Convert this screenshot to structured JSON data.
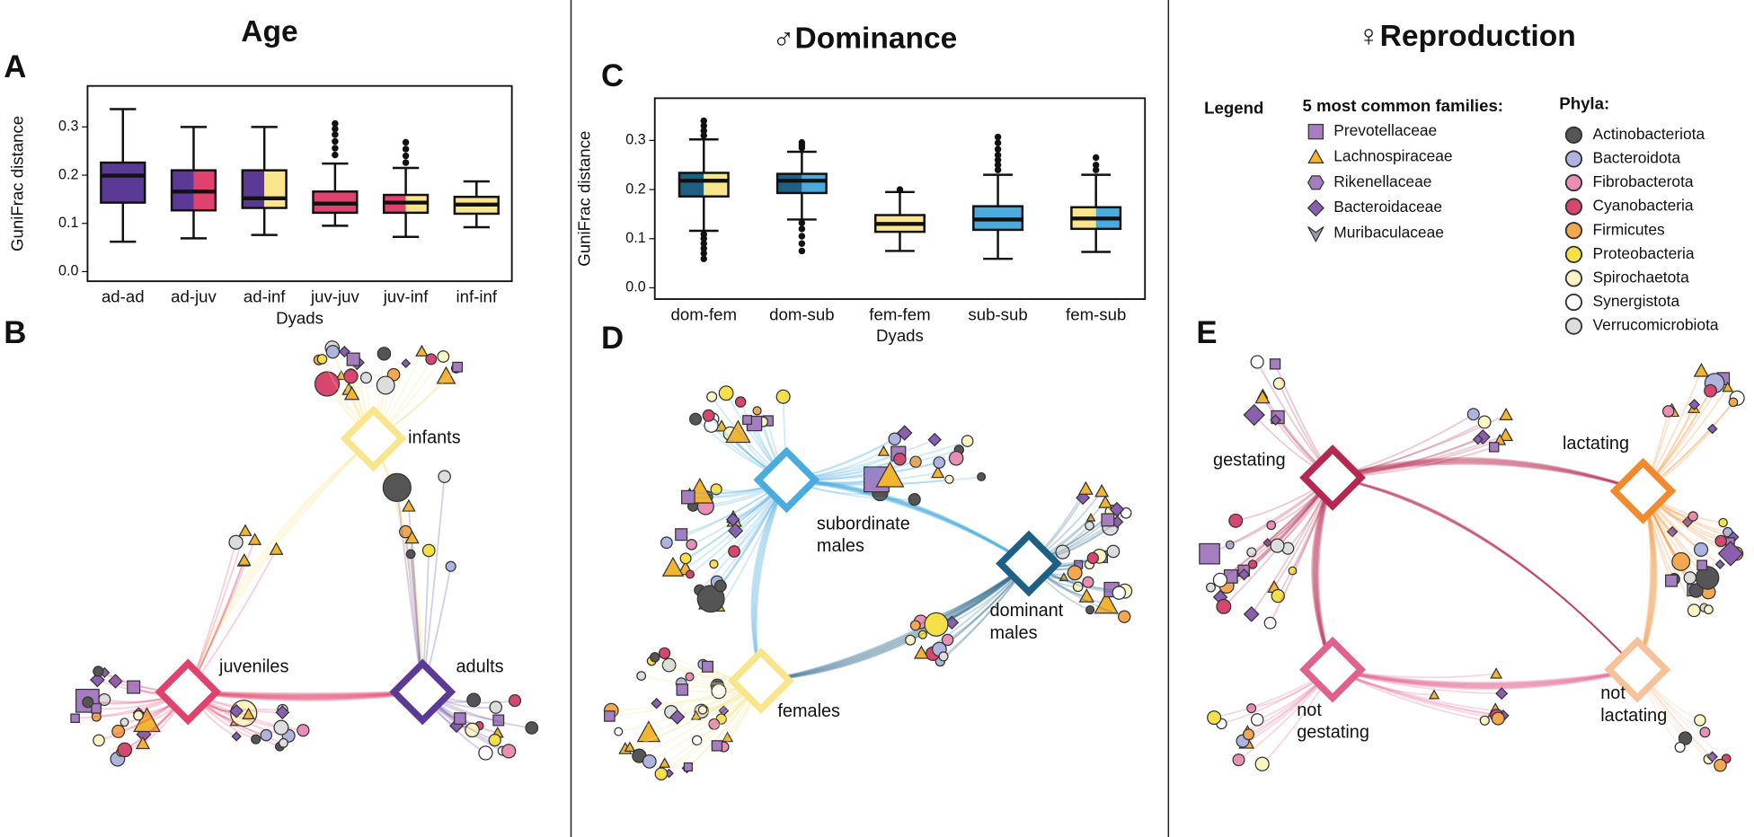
{
  "columns": [
    "Age",
    "♂Dominance",
    "♀Reproduction"
  ],
  "panels": [
    "A",
    "B",
    "C",
    "D",
    "E"
  ],
  "chart_data": [
    {
      "type": "box",
      "x_label": "Dyads",
      "y_label": "GuniFrac distance",
      "categories": [
        "ad-ad",
        "ad-juv",
        "ad-inf",
        "juv-juv",
        "juv-inf",
        "inf-inf"
      ],
      "whisker_low": [
        0.062,
        0.069,
        0.076,
        0.095,
        0.072,
        0.092
      ],
      "q1": [
        0.143,
        0.127,
        0.132,
        0.122,
        0.122,
        0.12
      ],
      "median": [
        0.199,
        0.166,
        0.152,
        0.141,
        0.143,
        0.139
      ],
      "q3": [
        0.226,
        0.21,
        0.21,
        0.166,
        0.159,
        0.155
      ],
      "whisker_high": [
        0.337,
        0.3,
        0.3,
        0.224,
        0.215,
        0.187
      ],
      "outliers": [
        [],
        [],
        [],
        [
          0.307,
          0.296,
          0.284,
          0.27,
          0.256,
          0.242
        ],
        [
          0.268,
          0.254,
          0.24,
          0.226
        ],
        []
      ],
      "colors": [
        [
          "#5b3a96"
        ],
        [
          "#5b3a96",
          "#e0426e"
        ],
        [
          "#5b3a96",
          "#f8e58c"
        ],
        [
          "#e0426e"
        ],
        [
          "#e0426e",
          "#f8e58c"
        ],
        [
          "#f8e58c"
        ]
      ],
      "ylim": [
        -0.02,
        0.385
      ],
      "yticks": [
        {
          "value": 0,
          "label": "0.0"
        },
        0.1,
        0.2,
        0.3
      ]
    },
    {
      "type": "box",
      "x_label": "Dyads",
      "y_label": "GuniFrac distance",
      "categories": [
        "dom-fem",
        "dom-sub",
        "fem-fem",
        "sub-sub",
        "fem-sub"
      ],
      "whisker_low": [
        0.116,
        0.139,
        0.075,
        0.059,
        0.073
      ],
      "q1": [
        0.186,
        0.193,
        0.114,
        0.118,
        0.12
      ],
      "median": [
        0.218,
        0.218,
        0.13,
        0.139,
        0.141
      ],
      "q3": [
        0.234,
        0.232,
        0.148,
        0.166,
        0.164
      ],
      "whisker_high": [
        0.302,
        0.277,
        0.195,
        0.23,
        0.23
      ],
      "outliers": [
        [
          0.34,
          0.33,
          0.32,
          0.31,
          0.109,
          0.1,
          0.09,
          0.08,
          0.07,
          0.059
        ],
        [
          0.296,
          0.29,
          0.285,
          0.132,
          0.12,
          0.105,
          0.09,
          0.075
        ],
        [
          0.2
        ],
        [
          0.307,
          0.295,
          0.282,
          0.27,
          0.26,
          0.25,
          0.24
        ],
        [
          0.265,
          0.25,
          0.24
        ]
      ],
      "colors": [
        [
          "#1e5f85",
          "#f8e58c"
        ],
        [
          "#1e5f85",
          "#4aabdf"
        ],
        [
          "#f8e58c"
        ],
        [
          "#4aabdf"
        ],
        [
          "#f8e58c",
          "#4aabdf"
        ]
      ],
      "ylim": [
        -0.023,
        0.386
      ],
      "yticks": [
        {
          "value": 0,
          "label": "0.0"
        },
        0.1,
        0.2,
        0.3
      ]
    }
  ],
  "networks": [
    {
      "labels": [
        [
          "infants"
        ],
        [
          "juveniles"
        ],
        [
          "adults"
        ]
      ],
      "colors": [
        "#f8e58c",
        "#e0426e",
        "#5b3a96"
      ]
    },
    {
      "labels": [
        [
          "subordinate",
          "males"
        ],
        [
          "dominant",
          "males"
        ],
        [
          "females"
        ]
      ],
      "colors": [
        "#4aabdf",
        "#1e5f85",
        "#f8e58c"
      ]
    },
    {
      "labels": [
        [
          "gestating"
        ],
        [
          "lactating"
        ],
        [
          "not",
          "gestating"
        ],
        [
          "not",
          "lactating"
        ]
      ],
      "colors": [
        "#b5284f",
        "#f08a2c",
        "#e0608e",
        "#f5c29a"
      ]
    }
  ],
  "legend": {
    "title": "Legend",
    "families_title": "5 most common families:",
    "families": [
      "Prevotellaceae",
      "Lachnospiraceae",
      "Rikenellaceae",
      "Bacteroidaceae",
      "Muribaculaceae"
    ],
    "phyla_title": "Phyla:",
    "phyla": [
      {
        "name": "Actinobacteriota",
        "color": "#555555"
      },
      {
        "name": "Bacteroidota",
        "color": "#aeb4e0"
      },
      {
        "name": "Fibrobacterota",
        "color": "#e98fb5"
      },
      {
        "name": "Cyanobacteria",
        "color": "#d6466d"
      },
      {
        "name": "Firmicutes",
        "color": "#f2a851"
      },
      {
        "name": "Proteobacteria",
        "color": "#f5e04a"
      },
      {
        "name": "Spirochaetota",
        "color": "#fbf5c4"
      },
      {
        "name": "Synergistota",
        "color": "#ffffff"
      },
      {
        "name": "Verrucomicrobiota",
        "color": "#dddddd"
      }
    ]
  }
}
